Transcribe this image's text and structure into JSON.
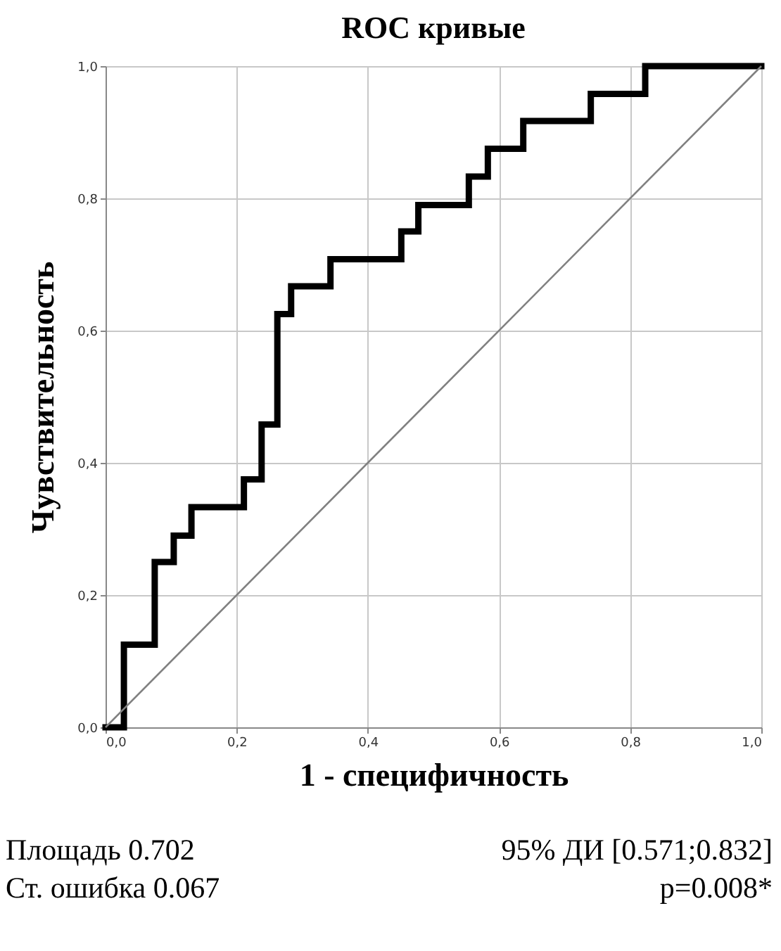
{
  "chart_data": {
    "type": "step",
    "title": "ROC кривые",
    "xlabel": "1 - специфичность",
    "ylabel": "Чувствительность",
    "series": [
      {
        "color": "#000000",
        "x": [
          0,
          0.028,
          0.075,
          0.104,
          0.131,
          0.211,
          0.238,
          0.262,
          0.283,
          0.343,
          0.451,
          0.477,
          0.554,
          0.583,
          0.637,
          0.74,
          0.823,
          1.0
        ],
        "values": [
          0,
          0.125,
          0.25,
          0.29,
          0.333,
          0.375,
          0.458,
          0.625,
          0.667,
          0.708,
          0.75,
          0.79,
          0.833,
          0.875,
          0.917,
          0.958,
          1.0,
          1.0
        ]
      },
      {
        "type": "line",
        "color": "#808080",
        "x": [
          0,
          1
        ],
        "values": [
          0,
          1
        ]
      }
    ],
    "xlim": [
      0,
      1
    ],
    "ylim": [
      0,
      1
    ],
    "xticks": [
      {
        "value": 0,
        "label": "0,0"
      },
      {
        "value": 0.2,
        "label": "0,2"
      },
      {
        "value": 0.4,
        "label": "0,4"
      },
      {
        "value": 0.6,
        "label": "0,6"
      },
      {
        "value": 0.8,
        "label": "0,8"
      },
      {
        "value": 1,
        "label": "1,0"
      }
    ],
    "yticks": [
      {
        "value": 0,
        "label": "0,0"
      },
      {
        "value": 0.2,
        "label": "0,2"
      },
      {
        "value": 0.4,
        "label": "0,4"
      },
      {
        "value": 0.6,
        "label": "0,6"
      },
      {
        "value": 0.8,
        "label": "0,8"
      },
      {
        "value": 1,
        "label": "1,0"
      }
    ],
    "grid": true,
    "annotations": [
      "Площадь 0.702",
      "95% ДИ [0.571;0.832]",
      "Ст. ошибка 0.067",
      "p=0.008*"
    ]
  }
}
